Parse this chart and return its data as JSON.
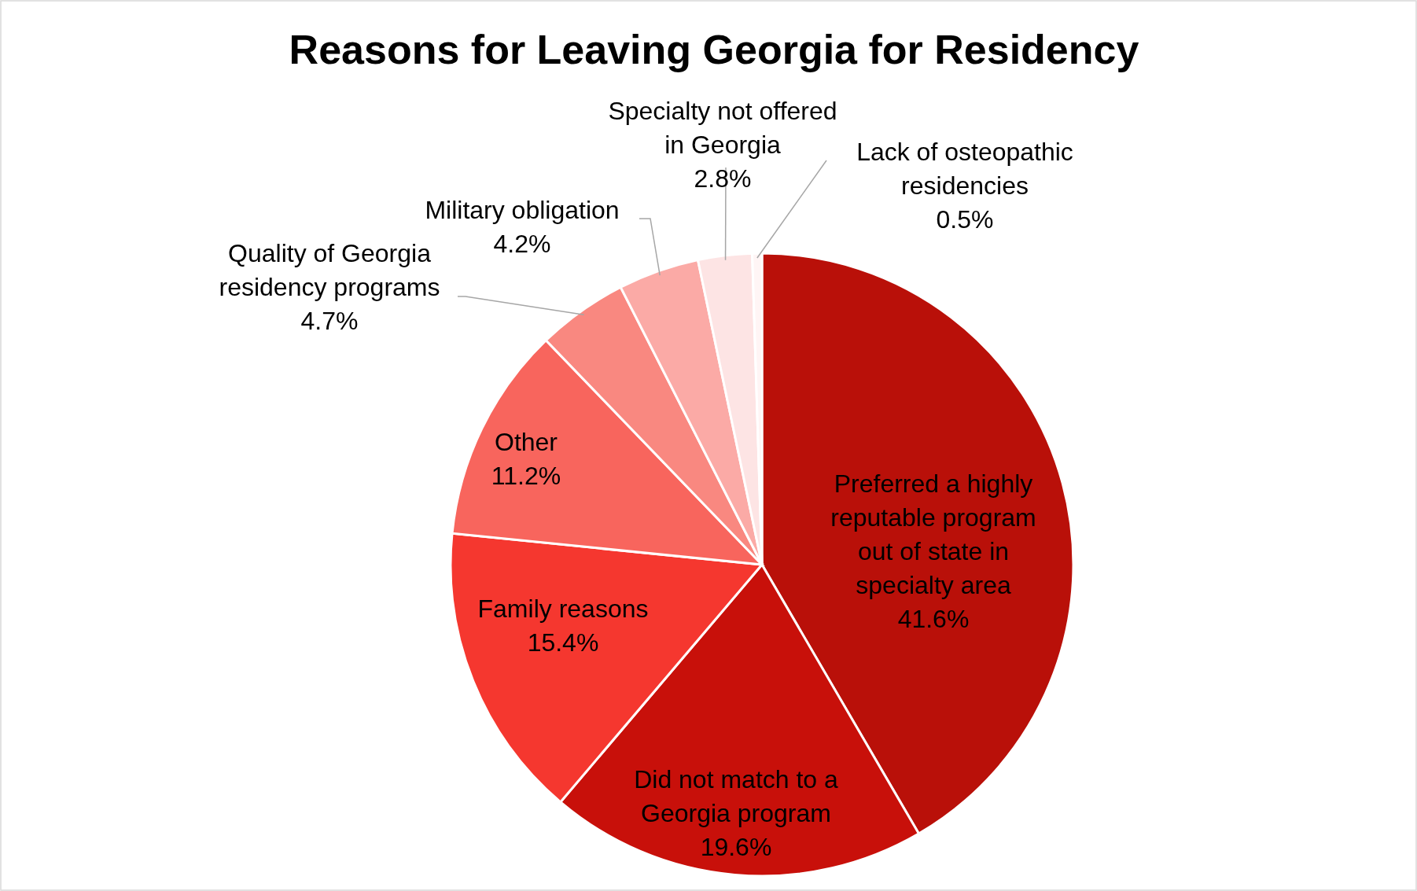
{
  "chart_data": {
    "type": "pie",
    "title": "Reasons for Leaving Georgia for Residency",
    "categories": [
      "Preferred a highly reputable program out of state in specialty area",
      "Did not match to a Georgia program",
      "Family reasons",
      "Other",
      "Quality of Georgia residency programs",
      "Military obligation",
      "Specialty not offered in Georgia",
      "Lack of osteopathic residencies"
    ],
    "values": [
      41.6,
      19.6,
      15.4,
      11.2,
      4.7,
      4.2,
      2.8,
      0.5
    ],
    "colors": [
      "#b91009",
      "#c8100a",
      "#f5372f",
      "#f8655d",
      "#f98880",
      "#fbaaa6",
      "#fde4e4",
      "#fff5f5"
    ],
    "value_labels": [
      "41.6%",
      "19.6%",
      "15.4%",
      "11.2%",
      "4.7%",
      "4.2%",
      "2.8%",
      "0.5%"
    ]
  }
}
